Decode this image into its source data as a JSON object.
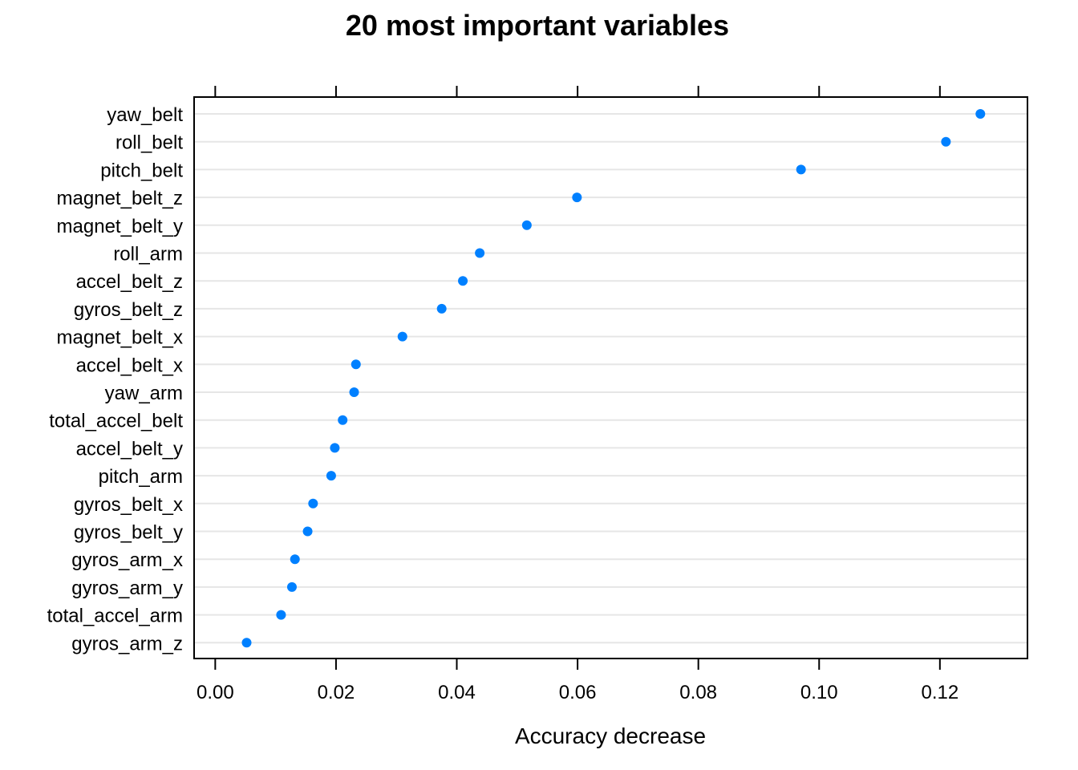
{
  "chart_data": {
    "type": "scatter",
    "title": "20 most important variables",
    "xlabel": "Accuracy decrease",
    "ylabel": "",
    "xlim": [
      -0.0035,
      0.1345
    ],
    "xticks": [
      "0.00",
      "0.02",
      "0.04",
      "0.06",
      "0.08",
      "0.10",
      "0.12"
    ],
    "tick_values": [
      0.0,
      0.02,
      0.04,
      0.06,
      0.08,
      0.1,
      0.12
    ],
    "grid": "horizontal",
    "marker_color": "#0080ff",
    "grid_color": "#e6e6e6",
    "categories": [
      "yaw_belt",
      "roll_belt",
      "pitch_belt",
      "magnet_belt_z",
      "magnet_belt_y",
      "roll_arm",
      "accel_belt_z",
      "gyros_belt_z",
      "magnet_belt_x",
      "accel_belt_x",
      "yaw_arm",
      "total_accel_belt",
      "accel_belt_y",
      "pitch_arm",
      "gyros_belt_x",
      "gyros_belt_y",
      "gyros_arm_x",
      "gyros_arm_y",
      "total_accel_arm",
      "gyros_arm_z"
    ],
    "values": [
      0.1267,
      0.121,
      0.097,
      0.0599,
      0.0516,
      0.0438,
      0.041,
      0.0375,
      0.031,
      0.0233,
      0.023,
      0.0211,
      0.0198,
      0.0192,
      0.0162,
      0.0153,
      0.0132,
      0.0127,
      0.0109,
      0.0052
    ]
  }
}
